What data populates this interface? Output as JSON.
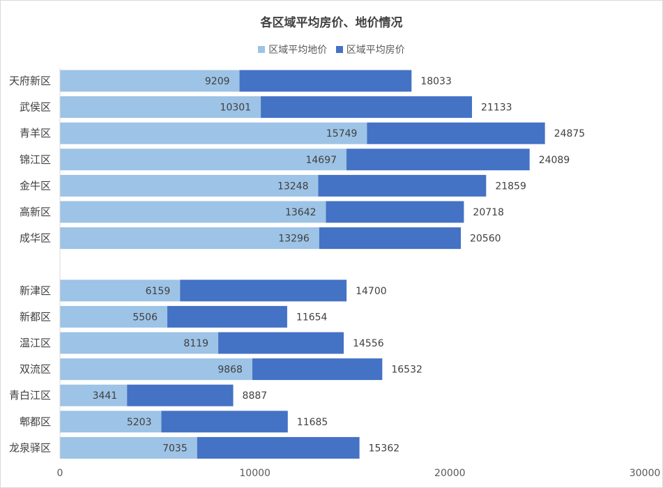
{
  "chart_data": {
    "type": "bar",
    "orientation": "horizontal",
    "stacked": true,
    "title": "各区域平均房价、地价情况",
    "legend_position": "top",
    "xlim": [
      0,
      30000
    ],
    "x_ticks": [
      "0",
      "10000",
      "20000",
      "30000"
    ],
    "grid": false,
    "groups": [
      {
        "categories": [
          "天府新区",
          "武侯区",
          "青羊区",
          "锦江区",
          "金牛区",
          "高新区",
          "成华区"
        ],
        "land_price": [
          9209,
          10301,
          15749,
          14697,
          13248,
          13642,
          13296
        ],
        "house_price": [
          18033,
          21133,
          24875,
          24089,
          21859,
          20718,
          20560
        ]
      },
      {
        "categories": [
          "新津区",
          "新都区",
          "温江区",
          "双流区",
          "青白江区",
          "郫都区",
          "龙泉驿区"
        ],
        "land_price": [
          6159,
          5506,
          8119,
          9868,
          3441,
          5203,
          7035
        ],
        "house_price": [
          14700,
          11654,
          14556,
          16532,
          8887,
          11685,
          15362
        ]
      }
    ],
    "series": [
      {
        "name": "区域平均地价",
        "color": "#9dc3e6"
      },
      {
        "name": "区域平均房价",
        "color": "#4472c4"
      }
    ]
  }
}
